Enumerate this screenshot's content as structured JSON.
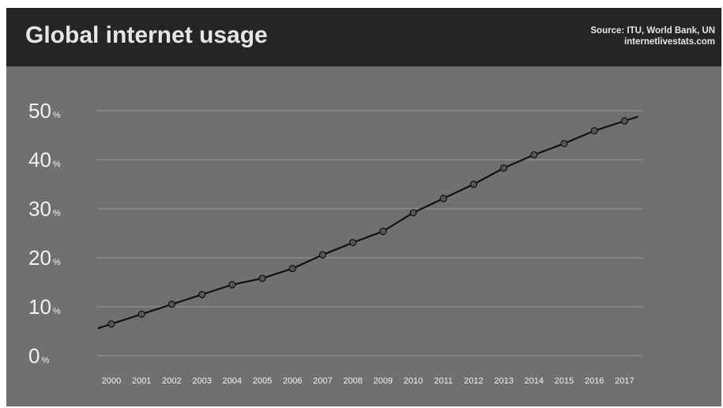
{
  "header": {
    "title": "Global internet usage",
    "source_line1": "Source: ITU, World Bank, UN",
    "source_line2": "internetlivestats.com"
  },
  "colors": {
    "background": "#707070",
    "header": "#252525",
    "text": "#f2f2f2",
    "grid": "#9a9a9a",
    "line": "#111111",
    "marker": "#555555"
  },
  "chart_data": {
    "type": "line",
    "title": "Global internet usage",
    "xlabel": "",
    "ylabel": "",
    "grid": true,
    "legend": "none",
    "ylim": [
      0,
      50
    ],
    "y_unit": "%",
    "y_ticks": [
      0,
      10,
      20,
      30,
      40,
      50
    ],
    "categories": [
      "2000",
      "2001",
      "2002",
      "2003",
      "2004",
      "2005",
      "2006",
      "2007",
      "2008",
      "2009",
      "2010",
      "2011",
      "2012",
      "2013",
      "2014",
      "2015",
      "2016",
      "2017"
    ],
    "series": [
      {
        "values": [
          6.5,
          8.5,
          10.5,
          12.5,
          14.5,
          15.8,
          17.8,
          20.6,
          23.1,
          25.4,
          29.2,
          32.1,
          35.0,
          38.3,
          41.0,
          43.3,
          45.9,
          47.9
        ]
      }
    ]
  }
}
